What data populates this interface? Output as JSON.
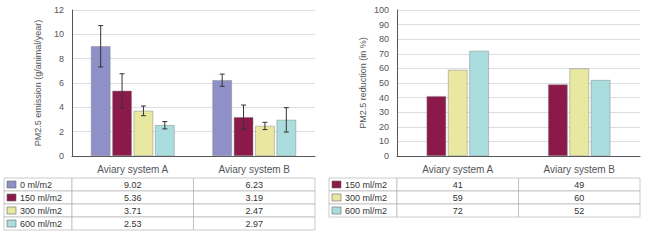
{
  "chart_data": [
    {
      "type": "bar",
      "ylabel": "PM2.5 emission (g/animal/year)",
      "categories": [
        "Aviary system A",
        "Aviary system B"
      ],
      "series": [
        {
          "name": "0 ml/m2",
          "color": "#9090c8",
          "values": [
            9.02,
            6.23
          ],
          "errors": [
            1.7,
            0.5
          ]
        },
        {
          "name": "150 ml/m2",
          "color": "#8b1a4a",
          "values": [
            5.36,
            3.19
          ],
          "errors": [
            1.4,
            1.0
          ]
        },
        {
          "name": "300 ml/m2",
          "color": "#e8e8a0",
          "values": [
            3.71,
            2.47
          ],
          "errors": [
            0.4,
            0.3
          ]
        },
        {
          "name": "600 ml/m2",
          "color": "#aadddd",
          "values": [
            2.53,
            2.97
          ],
          "errors": [
            0.3,
            1.0
          ]
        }
      ],
      "ylim": [
        0,
        12
      ],
      "yticks": [
        0,
        2,
        4,
        6,
        8,
        10,
        12
      ],
      "grid": true,
      "legend": "bottom"
    },
    {
      "type": "bar",
      "ylabel": "PM2.5 reduction (in %)",
      "categories": [
        "Aviary system A",
        "Aviary system B"
      ],
      "series": [
        {
          "name": "150 ml/m2",
          "color": "#8b1a4a",
          "values": [
            41,
            49
          ]
        },
        {
          "name": "300 ml/m2",
          "color": "#e8e8a0",
          "values": [
            59,
            60
          ]
        },
        {
          "name": "600 ml/m2",
          "color": "#aadddd",
          "values": [
            72,
            52
          ]
        }
      ],
      "ylim": [
        0,
        100
      ],
      "yticks": [
        0,
        10,
        20,
        30,
        40,
        50,
        60,
        70,
        80,
        90,
        100
      ],
      "grid": true,
      "legend": "bottom"
    }
  ]
}
